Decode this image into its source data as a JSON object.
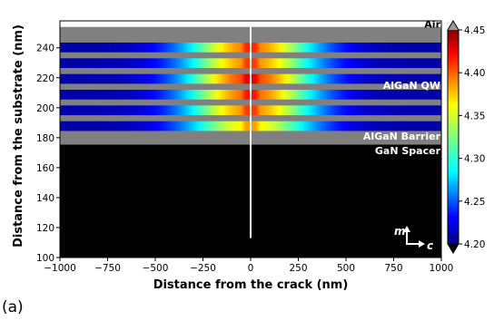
{
  "panel_label": "(a)",
  "chart_data": {
    "type": "heatmap",
    "xlabel": "Distance from the crack (nm)",
    "ylabel": "Distance from the substrate (nm)",
    "xlim": [
      -1000,
      1000
    ],
    "ylim": [
      100,
      258
    ],
    "xticks": [
      -1000,
      -750,
      -500,
      -250,
      0,
      250,
      500,
      750,
      1000
    ],
    "xtick_labels": [
      "−1000",
      "−750",
      "−500",
      "−250",
      "0",
      "250",
      "500",
      "750",
      "1000"
    ],
    "yticks": [
      100,
      120,
      140,
      160,
      180,
      200,
      220,
      240
    ],
    "ytick_labels": [
      "100",
      "120",
      "140",
      "160",
      "180",
      "200",
      "220",
      "240"
    ],
    "colorbar": {
      "min": 4.2,
      "max": 4.45,
      "ticks": [
        4.2,
        4.25,
        4.3,
        4.35,
        4.4,
        4.45
      ],
      "tick_labels": [
        "4.20",
        "4.25",
        "4.30",
        "4.35",
        "4.40",
        "4.45"
      ],
      "colormap": "jet",
      "extend": "both",
      "under_color": "#000000",
      "over_color": "#999999"
    },
    "regions": [
      {
        "label": "GaN Spacer",
        "y": [
          100,
          175.5
        ],
        "color": "#000000"
      },
      {
        "label": "AlGaN Barrier",
        "y": [
          175.5,
          254
        ],
        "color": "#808080"
      },
      {
        "label": "Air",
        "y": [
          254,
          258
        ],
        "color": "#ffffff"
      }
    ],
    "quantum_wells": {
      "label": "AlGaN QW",
      "layers": [
        {
          "y": [
            184.5,
            191
          ],
          "peak": 4.36
        },
        {
          "y": [
            195,
            201.5
          ],
          "peak": 4.385
        },
        {
          "y": [
            205.5,
            212
          ],
          "peak": 4.395
        },
        {
          "y": [
            216,
            222.5
          ],
          "peak": 4.405
        },
        {
          "y": [
            226.5,
            233
          ],
          "peak": 4.385
        },
        {
          "y": [
            237,
            243.5
          ],
          "peak": 4.39
        }
      ],
      "edge_value": 4.21,
      "core_width_nm": 350
    },
    "crack": {
      "x": 0,
      "y": [
        113,
        258
      ],
      "color": "#ffffff"
    },
    "crystal_axes": {
      "vertical": "m",
      "horizontal": "c"
    }
  }
}
